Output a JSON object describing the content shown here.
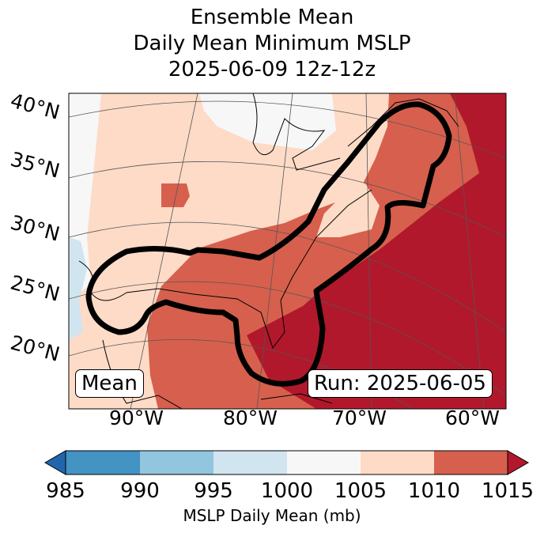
{
  "title": {
    "line1": "Ensemble Mean",
    "line2": "Daily Mean Minimum MSLP",
    "line3": "2025-06-09 12z-12z"
  },
  "map": {
    "lat_labels": [
      "40°N",
      "35°N",
      "30°N",
      "25°N",
      "20°N"
    ],
    "lon_labels": [
      "90°W",
      "80°W",
      "70°W",
      "60°W"
    ],
    "left_box": "Mean",
    "right_box": "Run: 2025-06-05"
  },
  "colorbar": {
    "ticks": [
      "985",
      "990",
      "995",
      "1000",
      "1005",
      "1010",
      "1015"
    ],
    "label": "MSLP Daily Mean (mb)",
    "colors": [
      "#2166ac",
      "#4393c3",
      "#92c5de",
      "#d1e5f0",
      "#f7f7f7",
      "#fddbc7",
      "#d6604d",
      "#b2182b"
    ]
  }
}
